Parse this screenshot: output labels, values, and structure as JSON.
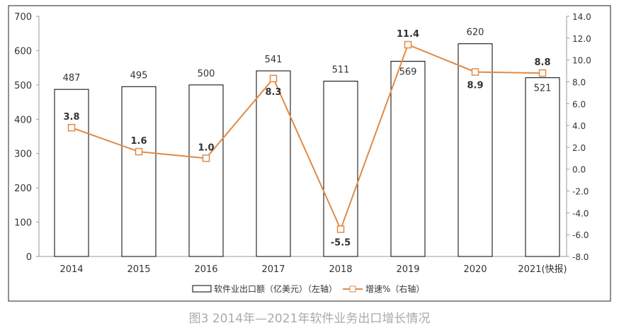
{
  "chart_data": {
    "type": "bar+line",
    "title": "图3  2014年—2021年软件业务出口增长情况",
    "categories": [
      "2014",
      "2015",
      "2016",
      "2017",
      "2018",
      "2019",
      "2020",
      "2021(快报)"
    ],
    "series": [
      {
        "name": "软件业出口额（亿美元）（左轴）",
        "type": "bar",
        "axis": "left",
        "values": [
          487,
          495,
          500,
          541,
          511,
          569,
          620,
          521
        ]
      },
      {
        "name": "增速%（右轴）",
        "type": "line",
        "axis": "right",
        "color": "#E08A45",
        "values": [
          3.8,
          1.6,
          1.0,
          8.3,
          -5.5,
          11.4,
          8.9,
          8.8
        ]
      }
    ],
    "ylim_left": [
      0,
      700
    ],
    "yticks_left": [
      "0",
      "100",
      "200",
      "300",
      "400",
      "500",
      "600",
      "700"
    ],
    "ylim_right": [
      -8,
      14
    ],
    "yticks_right": [
      "-8.0",
      "-6.0",
      "-4.0",
      "-2.0",
      "0.0",
      "2.0",
      "4.0",
      "6.0",
      "8.0",
      "10.0",
      "12.0",
      "14.0"
    ],
    "grid": false,
    "legend": "bottom"
  }
}
